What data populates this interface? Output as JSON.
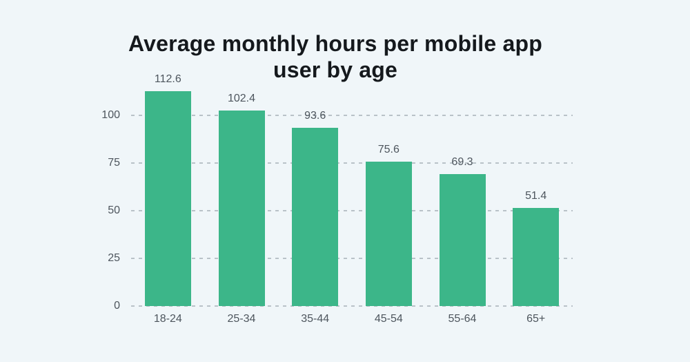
{
  "chart_data": {
    "type": "bar",
    "title": "Average monthly hours per mobile app user by age",
    "title_lines": [
      "Average monthly hours per mobile app",
      "user by age"
    ],
    "categories": [
      "18-24",
      "25-34",
      "35-44",
      "45-54",
      "55-64",
      "65+"
    ],
    "values": [
      112.6,
      102.4,
      93.6,
      75.6,
      69.3,
      51.4
    ],
    "value_labels": [
      "112.6",
      "102.4",
      "93.6",
      "75.6",
      "69.3",
      "51.4"
    ],
    "xlabel": "",
    "ylabel": "",
    "yticks": [
      0,
      25,
      50,
      75,
      100
    ],
    "ytick_labels": [
      "0",
      "25",
      "50",
      "75",
      "100"
    ],
    "ylim": [
      0,
      120
    ],
    "grid": "dashed-horizontal",
    "legend": "none"
  },
  "colors": {
    "background": "#f0f6f9",
    "bar": "#3cb689",
    "gridline": "#b9c2c8",
    "axis_text": "#4d555d",
    "title_text": "#15191d"
  }
}
